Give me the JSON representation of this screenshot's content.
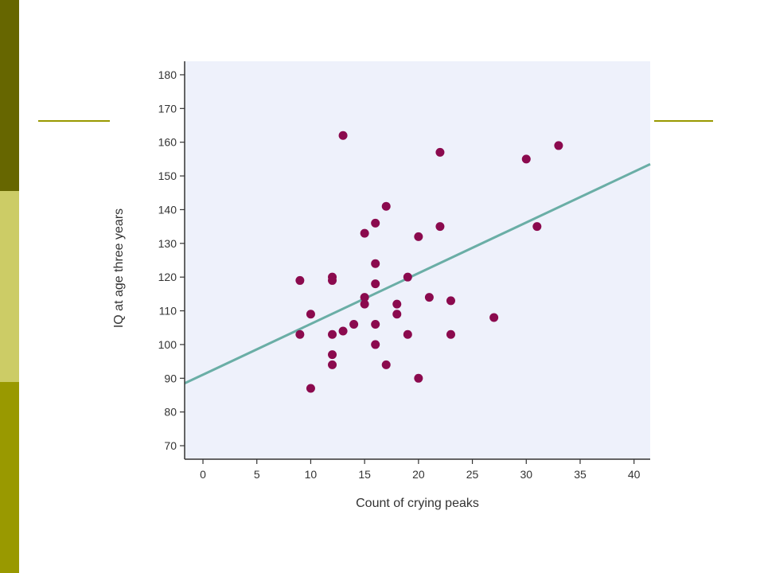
{
  "theme": {
    "strip_top": "#666600",
    "strip_mid": "#cccc66",
    "strip_bot": "#999900",
    "deco_line": "#999900",
    "plot_bg": "#eef1fb",
    "point_color": "#8b0a4e",
    "line_color": "#6aaea6",
    "axis_color": "#333333"
  },
  "chart_data": {
    "type": "scatter",
    "xlabel": "Count of crying peaks",
    "ylabel": "IQ at age three years",
    "xlim": [
      -1.7,
      41.5
    ],
    "ylim": [
      66,
      184
    ],
    "x_ticks": [
      0,
      5,
      10,
      15,
      20,
      25,
      30,
      35,
      40
    ],
    "y_ticks": [
      70,
      80,
      90,
      100,
      110,
      120,
      130,
      140,
      150,
      160,
      170,
      180
    ],
    "grid": false,
    "points": [
      {
        "x": 9,
        "y": 119
      },
      {
        "x": 9,
        "y": 103
      },
      {
        "x": 10,
        "y": 109
      },
      {
        "x": 10,
        "y": 87
      },
      {
        "x": 12,
        "y": 120
      },
      {
        "x": 12,
        "y": 119
      },
      {
        "x": 12,
        "y": 103
      },
      {
        "x": 12,
        "y": 97
      },
      {
        "x": 12,
        "y": 94
      },
      {
        "x": 13,
        "y": 162
      },
      {
        "x": 13,
        "y": 104
      },
      {
        "x": 14,
        "y": 106
      },
      {
        "x": 15,
        "y": 133
      },
      {
        "x": 15,
        "y": 114
      },
      {
        "x": 15,
        "y": 112
      },
      {
        "x": 16,
        "y": 136
      },
      {
        "x": 16,
        "y": 124
      },
      {
        "x": 16,
        "y": 118
      },
      {
        "x": 16,
        "y": 106
      },
      {
        "x": 16,
        "y": 100
      },
      {
        "x": 17,
        "y": 141
      },
      {
        "x": 17,
        "y": 94
      },
      {
        "x": 18,
        "y": 112
      },
      {
        "x": 18,
        "y": 109
      },
      {
        "x": 19,
        "y": 120
      },
      {
        "x": 19,
        "y": 103
      },
      {
        "x": 20,
        "y": 132
      },
      {
        "x": 20,
        "y": 90
      },
      {
        "x": 21,
        "y": 114
      },
      {
        "x": 22,
        "y": 157
      },
      {
        "x": 22,
        "y": 135
      },
      {
        "x": 23,
        "y": 113
      },
      {
        "x": 23,
        "y": 103
      },
      {
        "x": 27,
        "y": 108
      },
      {
        "x": 30,
        "y": 155
      },
      {
        "x": 31,
        "y": 135
      },
      {
        "x": 33,
        "y": 159
      }
    ],
    "trend_line": {
      "x": [
        -1.7,
        41.5
      ],
      "y": [
        88.5,
        153.5
      ]
    }
  }
}
